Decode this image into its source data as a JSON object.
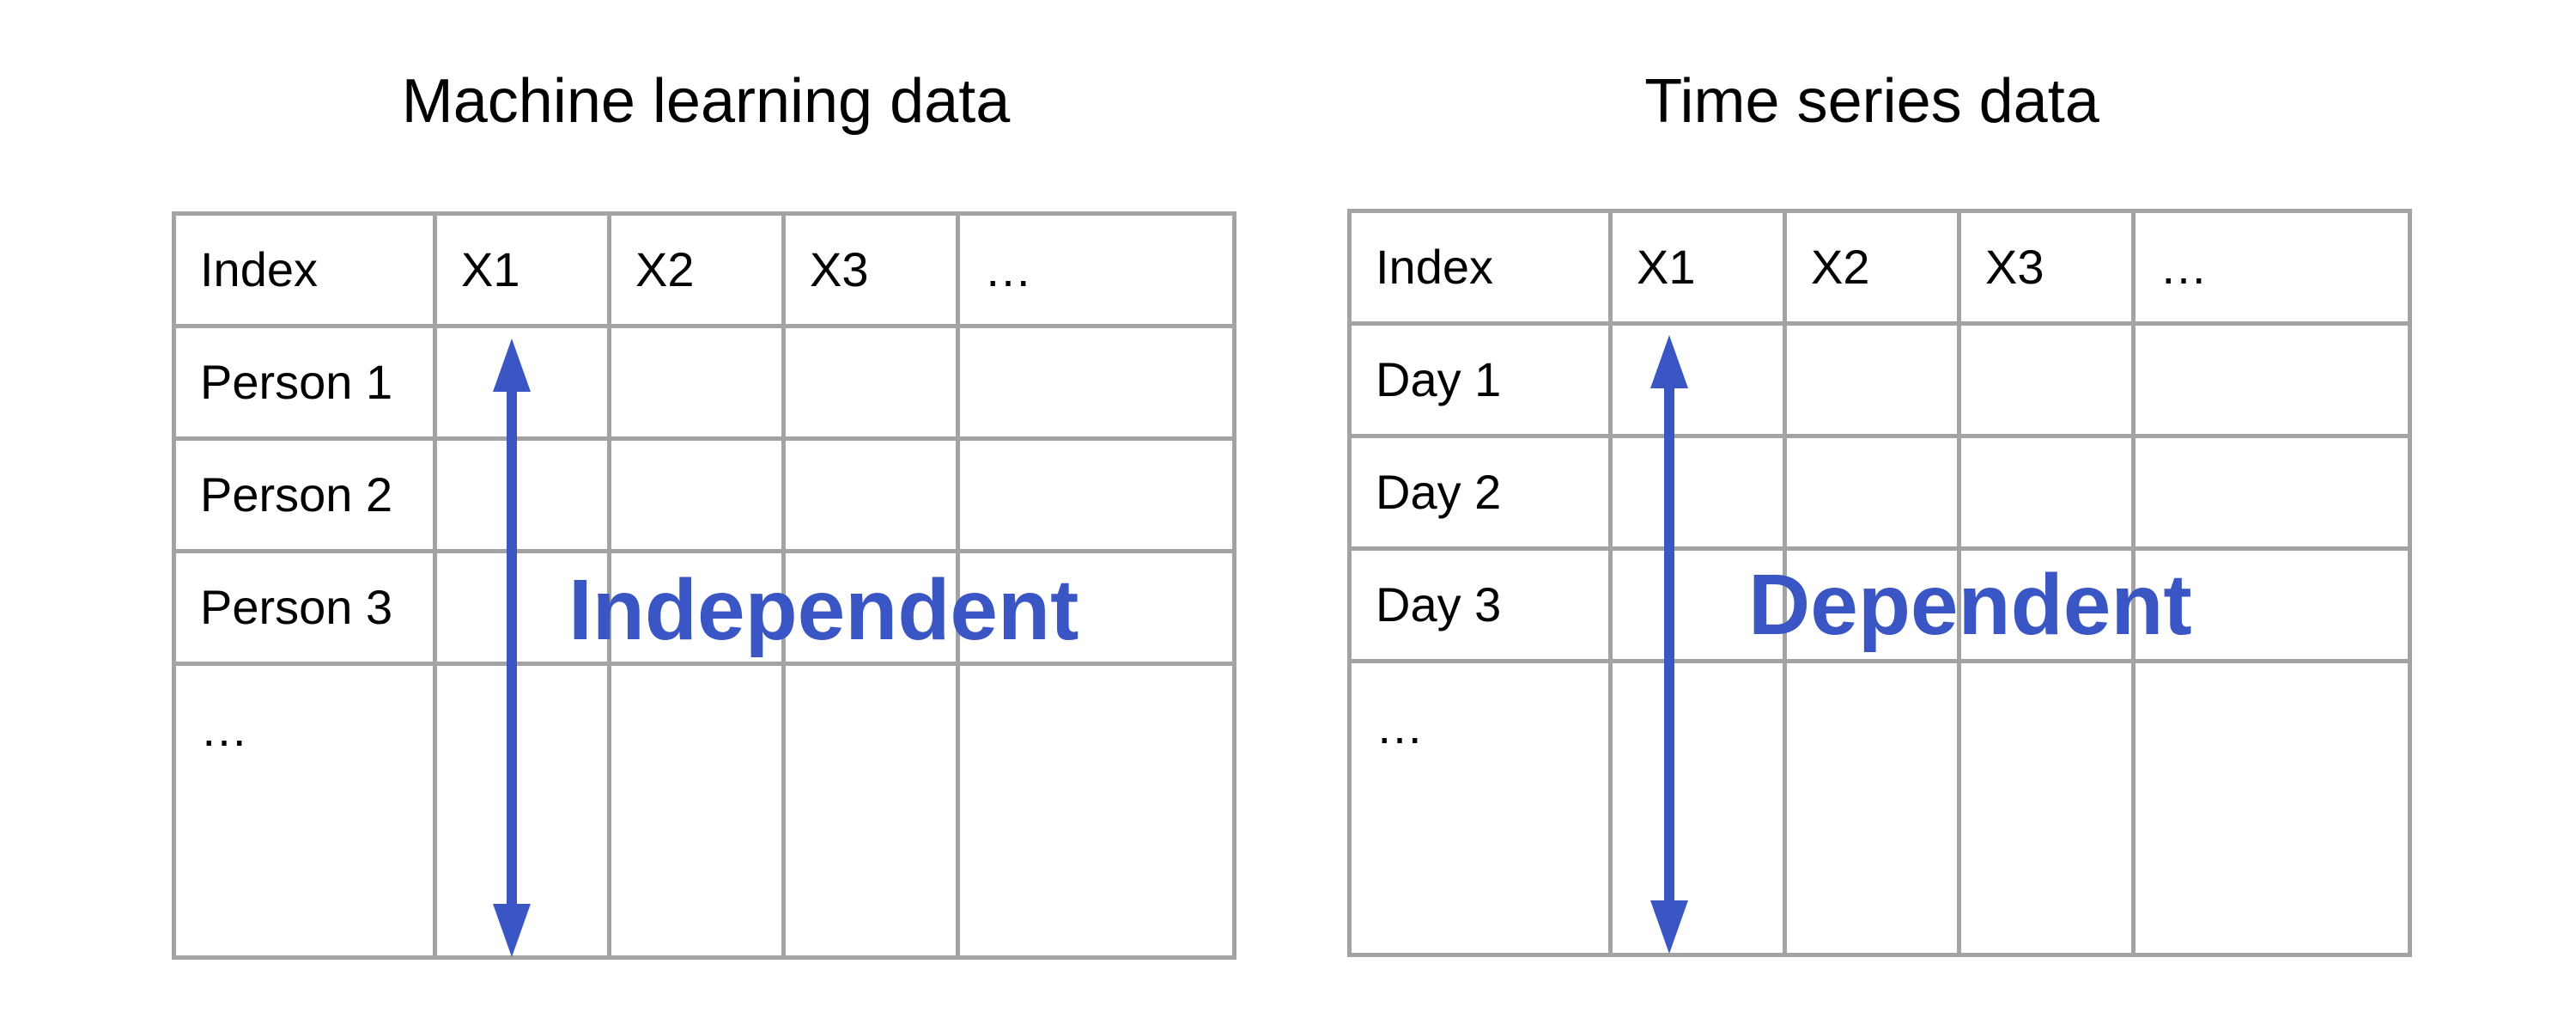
{
  "left_panel": {
    "title": "Machine learning data",
    "header": [
      "Index",
      "X1",
      "X2",
      "X3",
      "…"
    ],
    "row_labels": [
      "Person 1",
      "Person 2",
      "Person 3",
      "…"
    ],
    "arrow_label": "Independent"
  },
  "right_panel": {
    "title": "Time series data",
    "header": [
      "Index",
      "X1",
      "X2",
      "X3",
      "…"
    ],
    "row_labels": [
      "Day 1",
      "Day 2",
      "Day 3",
      "…"
    ],
    "arrow_label": "Dependent"
  },
  "colors": {
    "accent": "#3a56c5",
    "grid": "#a3a3a3",
    "text": "#000000"
  }
}
